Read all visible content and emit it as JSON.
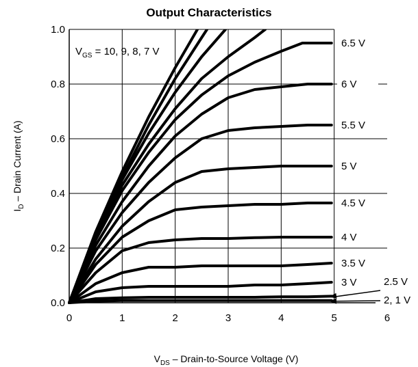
{
  "chart_data": {
    "type": "line",
    "title": "Output Characteristics",
    "xlabel": {
      "main": "V",
      "sub": "DS",
      "rest": " – Drain-to-Source Voltage (V)"
    },
    "ylabel": {
      "main": "I",
      "sub": "D",
      "rest": " – Drain Current (A)"
    },
    "xlim": [
      0,
      6
    ],
    "ylim": [
      0,
      1.0
    ],
    "xticks": [
      "0",
      "1",
      "2",
      "3",
      "4",
      "5",
      "6"
    ],
    "yticks": [
      "0.0",
      "0.2",
      "0.4",
      "0.6",
      "0.8",
      "1.0"
    ],
    "grid": true,
    "vgs_note": {
      "main": "V",
      "sub": "GS",
      "rest": " = 10, 9, 8, 7 V"
    },
    "series": [
      {
        "name": "10 V",
        "x": [
          0,
          0.5,
          1.0,
          1.5,
          2.0,
          2.42
        ],
        "y": [
          0,
          0.26,
          0.48,
          0.68,
          0.86,
          1.0
        ]
      },
      {
        "name": "9 V",
        "x": [
          0,
          0.5,
          1.0,
          1.5,
          2.0,
          2.5,
          2.6
        ],
        "y": [
          0,
          0.25,
          0.46,
          0.65,
          0.82,
          0.97,
          1.0
        ]
      },
      {
        "name": "8 V",
        "x": [
          0,
          0.5,
          1.0,
          1.5,
          2.0,
          2.5,
          2.95
        ],
        "y": [
          0,
          0.25,
          0.45,
          0.62,
          0.77,
          0.9,
          1.0
        ]
      },
      {
        "name": "7 V",
        "x": [
          0,
          0.5,
          1.0,
          1.5,
          2.0,
          2.5,
          3.0,
          3.5,
          3.7
        ],
        "y": [
          0,
          0.24,
          0.43,
          0.58,
          0.71,
          0.82,
          0.9,
          0.97,
          1.0
        ]
      },
      {
        "name": "6.5 V",
        "x": [
          0,
          0.5,
          1.0,
          1.5,
          2.0,
          2.5,
          3.0,
          3.5,
          4.0,
          4.4,
          4.95
        ],
        "y": [
          0,
          0.23,
          0.41,
          0.55,
          0.67,
          0.76,
          0.83,
          0.88,
          0.92,
          0.95,
          0.95
        ]
      },
      {
        "name": "6 V",
        "x": [
          0,
          0.5,
          1.0,
          1.5,
          2.0,
          2.5,
          3.0,
          3.5,
          4.0,
          4.5,
          4.95
        ],
        "y": [
          0,
          0.21,
          0.37,
          0.5,
          0.61,
          0.69,
          0.75,
          0.78,
          0.79,
          0.8,
          0.8
        ]
      },
      {
        "name": "5.5 V",
        "x": [
          0,
          0.5,
          1.0,
          1.5,
          2.0,
          2.5,
          3.0,
          3.5,
          4.0,
          4.5,
          4.95
        ],
        "y": [
          0,
          0.19,
          0.33,
          0.44,
          0.53,
          0.6,
          0.63,
          0.64,
          0.645,
          0.65,
          0.65
        ]
      },
      {
        "name": "5 V",
        "x": [
          0,
          0.5,
          1.0,
          1.5,
          2.0,
          2.5,
          3.0,
          3.5,
          4.0,
          4.5,
          4.95
        ],
        "y": [
          0,
          0.16,
          0.28,
          0.37,
          0.44,
          0.48,
          0.49,
          0.495,
          0.5,
          0.5,
          0.5
        ]
      },
      {
        "name": "4.5 V",
        "x": [
          0,
          0.5,
          1.0,
          1.5,
          2.0,
          2.5,
          3.0,
          3.5,
          4.0,
          4.5,
          4.95
        ],
        "y": [
          0,
          0.14,
          0.24,
          0.3,
          0.34,
          0.35,
          0.355,
          0.36,
          0.36,
          0.365,
          0.365
        ]
      },
      {
        "name": "4 V",
        "x": [
          0,
          0.5,
          1.0,
          1.5,
          2.0,
          2.5,
          3.0,
          3.5,
          4.0,
          4.5,
          4.95
        ],
        "y": [
          0,
          0.11,
          0.19,
          0.22,
          0.23,
          0.235,
          0.235,
          0.238,
          0.24,
          0.24,
          0.24
        ]
      },
      {
        "name": "3.5 V",
        "x": [
          0,
          0.5,
          1.0,
          1.5,
          2.0,
          2.5,
          3.0,
          3.5,
          4.0,
          4.5,
          4.95
        ],
        "y": [
          0,
          0.07,
          0.11,
          0.13,
          0.13,
          0.135,
          0.135,
          0.135,
          0.135,
          0.14,
          0.145
        ]
      },
      {
        "name": "3 V",
        "x": [
          0,
          0.5,
          1.0,
          1.5,
          2.0,
          2.5,
          3.0,
          3.5,
          4.0,
          4.5,
          4.95
        ],
        "y": [
          0,
          0.04,
          0.055,
          0.06,
          0.06,
          0.06,
          0.06,
          0.065,
          0.065,
          0.07,
          0.075
        ]
      },
      {
        "name": "2.5 V",
        "x": [
          0,
          0.5,
          1.0,
          1.5,
          2.0,
          2.5,
          3.0,
          3.5,
          4.0,
          4.5,
          4.95
        ],
        "y": [
          0,
          0.015,
          0.018,
          0.02,
          0.02,
          0.02,
          0.02,
          0.02,
          0.022,
          0.022,
          0.024
        ]
      },
      {
        "name": "2, 1 V",
        "x": [
          0,
          0.5,
          1.0,
          1.5,
          2.0,
          2.5,
          3.0,
          3.5,
          4.0,
          4.5,
          4.95
        ],
        "y": [
          0,
          0.006,
          0.008,
          0.008,
          0.008,
          0.008,
          0.008,
          0.008,
          0.008,
          0.008,
          0.008
        ]
      }
    ],
    "curve_labels": [
      {
        "text": "6.5 V",
        "y": 0.95
      },
      {
        "text": "6 V",
        "y": 0.8
      },
      {
        "text": "5.5 V",
        "y": 0.65
      },
      {
        "text": "5 V",
        "y": 0.5
      },
      {
        "text": "4.5 V",
        "y": 0.365
      },
      {
        "text": "4 V",
        "y": 0.24
      },
      {
        "text": "3.5 V",
        "y": 0.145
      },
      {
        "text": "3 V",
        "y": 0.075
      }
    ],
    "arrow_labels": [
      {
        "text": "2.5 V",
        "y": 0.022
      },
      {
        "text": "2, 1 V",
        "y": 0.008
      }
    ]
  }
}
